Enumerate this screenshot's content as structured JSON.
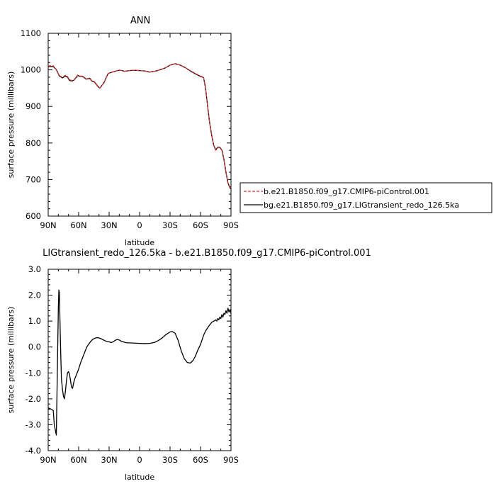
{
  "chart_data": [
    {
      "type": "line",
      "title": "ANN",
      "xlabel": "latitude",
      "ylabel": "surface pressure (millibars)",
      "xlim": [
        90,
        -90
      ],
      "ylim": [
        600,
        1100
      ],
      "x_ticks": [
        90,
        60,
        30,
        0,
        -30,
        -60,
        -90
      ],
      "x_tick_labels": [
        "90N",
        "60N",
        "30N",
        "0",
        "30S",
        "60S",
        "90S"
      ],
      "y_ticks": [
        600,
        700,
        800,
        900,
        1000,
        1100
      ],
      "y_tick_labels": [
        "600",
        "700",
        "800",
        "900",
        "1000",
        "1100"
      ],
      "legend_position": "right",
      "series": [
        {
          "name": "b.e21.B1850.f09_g17.CMIP6-piControl.001",
          "color": "#e03030",
          "dash": "dashed",
          "x": [
            90,
            85,
            82,
            79,
            76,
            73,
            71,
            69,
            67,
            65,
            63,
            61,
            59,
            56,
            53,
            51,
            49,
            47,
            45,
            43,
            41,
            39,
            37,
            35,
            33,
            31,
            29,
            27,
            25,
            23,
            20,
            17,
            15,
            12,
            10,
            5,
            0,
            -5,
            -10,
            -15,
            -20,
            -25,
            -30,
            -35,
            -40,
            -45,
            -50,
            -55,
            -60,
            -63,
            -65,
            -67,
            -69,
            -71,
            -73,
            -75,
            -77,
            -79,
            -81,
            -83,
            -85,
            -87,
            -89,
            -90
          ],
          "y": [
            1011,
            1011,
            1000,
            984,
            980,
            985,
            982,
            973,
            971,
            972,
            978,
            986,
            983,
            983,
            976,
            976,
            978,
            970,
            969,
            963,
            955,
            950,
            958,
            965,
            978,
            990,
            992,
            994,
            995,
            997,
            999,
            998,
            996,
            997,
            998,
            999,
            998,
            997,
            994,
            996,
            1000,
            1005,
            1013,
            1017,
            1013,
            1006,
            998,
            990,
            983,
            980,
            950,
            900,
            855,
            820,
            793,
            780,
            788,
            787,
            780,
            755,
            720,
            690,
            676,
            674
          ]
        },
        {
          "name": "bg.e21.B1850.f09_g17.LIGtransient_redo_126.5ka",
          "color": "#000000",
          "dash": "solid",
          "x": [
            90,
            85,
            82,
            79,
            76,
            73,
            71,
            69,
            67,
            65,
            63,
            61,
            59,
            56,
            53,
            51,
            49,
            47,
            45,
            43,
            41,
            39,
            37,
            35,
            33,
            31,
            29,
            27,
            25,
            23,
            20,
            17,
            15,
            12,
            10,
            5,
            0,
            -5,
            -10,
            -15,
            -20,
            -25,
            -30,
            -35,
            -40,
            -45,
            -50,
            -55,
            -60,
            -63,
            -65,
            -67,
            -69,
            -71,
            -73,
            -75,
            -77,
            -79,
            -81,
            -83,
            -85,
            -87,
            -89,
            -90
          ],
          "y": [
            1009,
            1009,
            1001,
            983,
            978,
            983,
            980,
            971,
            970,
            971,
            977,
            985,
            982,
            982,
            975,
            975,
            977,
            969,
            968,
            962,
            954,
            950,
            958,
            965,
            978,
            990,
            992,
            994,
            995,
            997,
            999,
            998,
            996,
            997,
            998,
            999,
            998,
            997,
            994,
            996,
            1000,
            1005,
            1013,
            1017,
            1013,
            1006,
            997,
            989,
            982,
            979,
            949,
            900,
            855,
            821,
            794,
            781,
            789,
            788,
            781,
            756,
            721,
            691,
            677,
            675
          ]
        }
      ]
    },
    {
      "type": "line",
      "title": "LIGtransient_redo_126.5ka - b.e21.B1850.f09_g17.CMIP6-piControl.001",
      "xlabel": "latitude",
      "ylabel": "surface pressure (millibars)",
      "xlim": [
        90,
        -90
      ],
      "ylim": [
        -4.0,
        3.0
      ],
      "x_ticks": [
        90,
        60,
        30,
        0,
        -30,
        -60,
        -90
      ],
      "x_tick_labels": [
        "90N",
        "60N",
        "30N",
        "0",
        "30S",
        "60S",
        "90S"
      ],
      "y_ticks": [
        -4.0,
        -3.0,
        -2.0,
        -1.0,
        0.0,
        1.0,
        2.0,
        3.0
      ],
      "y_tick_labels": [
        "-4.0",
        "-3.0",
        "-2.0",
        "-1.0",
        "0.0",
        "1.0",
        "2.0",
        "3.0"
      ],
      "series": [
        {
          "color": "#000000",
          "x": [
            90,
            87,
            85,
            84,
            82,
            81,
            80,
            79.5,
            79,
            78,
            77,
            76,
            75,
            74,
            73,
            72,
            71,
            70,
            69,
            68,
            67,
            66,
            65,
            64,
            63,
            62,
            60,
            58,
            56,
            54,
            52,
            50,
            48,
            46,
            44,
            42,
            40,
            38,
            36,
            34,
            32,
            30,
            28,
            26,
            24,
            22,
            20,
            18,
            16,
            14,
            12,
            10,
            5,
            0,
            -5,
            -10,
            -15,
            -18,
            -22,
            -26,
            -30,
            -32,
            -35,
            -38,
            -41,
            -44,
            -47,
            -50,
            -53,
            -55,
            -57,
            -60,
            -63,
            -65,
            -68,
            -71,
            -74,
            -75,
            -76,
            -77,
            -78,
            -79,
            -80,
            -81,
            -82,
            -83,
            -84,
            -85,
            -86,
            -87,
            -88,
            -89,
            -90
          ],
          "y": [
            -2.35,
            -2.4,
            -2.45,
            -3.0,
            -3.4,
            -1.0,
            1.5,
            2.2,
            2.1,
            0.3,
            -1.2,
            -1.6,
            -1.9,
            -2.0,
            -1.7,
            -1.3,
            -1.0,
            -0.95,
            -1.05,
            -1.3,
            -1.55,
            -1.6,
            -1.4,
            -1.25,
            -1.15,
            -1.05,
            -0.85,
            -0.6,
            -0.4,
            -0.2,
            0.0,
            0.12,
            0.22,
            0.3,
            0.34,
            0.36,
            0.35,
            0.32,
            0.28,
            0.24,
            0.21,
            0.2,
            0.17,
            0.2,
            0.26,
            0.29,
            0.27,
            0.22,
            0.2,
            0.17,
            0.16,
            0.16,
            0.15,
            0.14,
            0.13,
            0.14,
            0.18,
            0.24,
            0.34,
            0.48,
            0.58,
            0.6,
            0.53,
            0.25,
            -0.15,
            -0.45,
            -0.6,
            -0.62,
            -0.5,
            -0.35,
            -0.15,
            0.1,
            0.45,
            0.62,
            0.8,
            0.95,
            1.02,
            1.05,
            1.0,
            1.1,
            1.05,
            1.15,
            1.1,
            1.25,
            1.15,
            1.3,
            1.25,
            1.4,
            1.3,
            1.5,
            1.35,
            1.45,
            1.3
          ]
        }
      ]
    }
  ]
}
